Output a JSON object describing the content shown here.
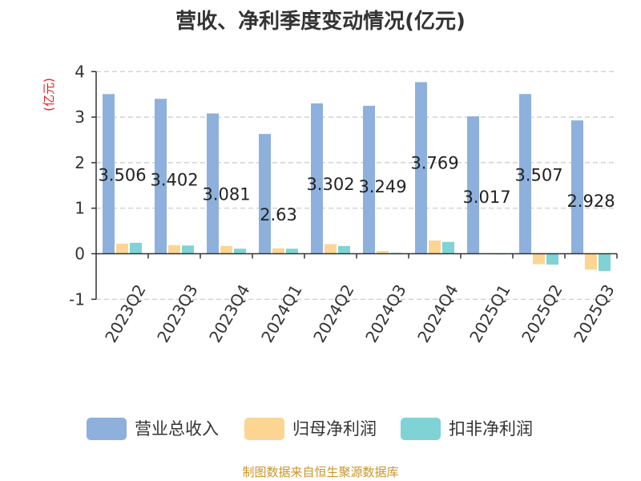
{
  "chart_data": {
    "type": "bar",
    "title": "营收、净利季度变动情况(亿元)",
    "ylabel": "(亿元)",
    "categories": [
      "2023Q2",
      "2023Q3",
      "2023Q4",
      "2024Q1",
      "2024Q2",
      "2024Q3",
      "2024Q4",
      "2025Q1",
      "2025Q2",
      "2025Q3"
    ],
    "series": [
      {
        "name": "营业总收入",
        "color": "#8eb0dc",
        "values": [
          3.506,
          3.402,
          3.081,
          2.63,
          3.302,
          3.249,
          3.769,
          3.017,
          3.507,
          2.928
        ]
      },
      {
        "name": "归母净利润",
        "color": "#fcd593",
        "values": [
          0.22,
          0.19,
          0.17,
          0.12,
          0.21,
          0.06,
          0.29,
          0.01,
          -0.23,
          -0.35
        ]
      },
      {
        "name": "扣非净利润",
        "color": "#7fd3d5",
        "values": [
          0.24,
          0.18,
          0.11,
          0.11,
          0.17,
          0.02,
          0.26,
          -0.01,
          -0.24,
          -0.38
        ]
      }
    ],
    "data_labels": [
      "3.506",
      "3.402",
      "3.081",
      "2.63",
      "3.302",
      "3.249",
      "3.769",
      "3.017",
      "3.507",
      "2.928"
    ],
    "ylim": [
      -1,
      4
    ],
    "yticks": [
      -1,
      0,
      1,
      2,
      3,
      4
    ],
    "grid": true,
    "legend_position": "bottom"
  },
  "source_note": "制图数据来自恒生聚源数据库"
}
